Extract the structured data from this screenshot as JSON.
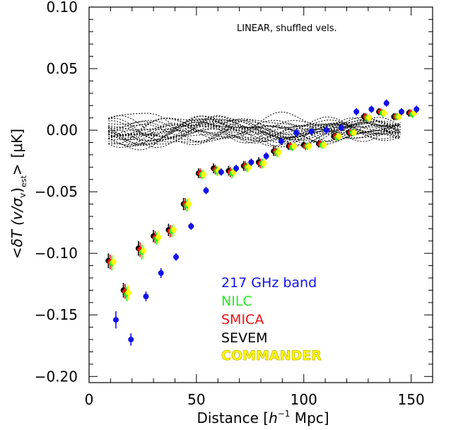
{
  "chart_data": {
    "type": "scatter",
    "annotation": "LINEAR, shuffled vels.",
    "xlabel_prefix": "Distance [",
    "xlabel_h": "h",
    "xlabel_h_exp": "−1",
    "xlabel_suffix": " Mpc]",
    "ylabel_lt": "<",
    "ylabel_dT": "δT",
    "ylabel_v": "(v/σ",
    "ylabel_vsub": "v",
    "ylabel_close": ")",
    "ylabel_est": "est",
    "ylabel_gt": ">",
    "ylabel_unit": "[μK]",
    "xlim": [
      0,
      160
    ],
    "ylim": [
      -0.205,
      0.1
    ],
    "x_ticks": [
      0,
      50,
      100,
      150
    ],
    "x_tick_labels": [
      "0",
      "50",
      "100",
      "150"
    ],
    "y_ticks": [
      0.1,
      0.05,
      0.0,
      -0.05,
      -0.1,
      -0.15,
      -0.2
    ],
    "y_tick_labels": [
      "0.10",
      "0.05",
      "0.00",
      "−0.05",
      "−0.10",
      "−0.15",
      "−0.20"
    ],
    "legend_placement": "bottom-right",
    "series": [
      {
        "name": "SEVEM",
        "color": "#000000",
        "x": [
          9.0,
          16.0,
          23.0,
          30.0,
          37.0,
          44.0,
          51.0,
          58.0,
          65.0,
          72.0,
          79.0,
          86.0,
          93.0,
          100.0,
          107.0,
          114.0,
          121.0,
          128.0,
          135.0,
          142.0,
          149.0
        ],
        "y": [
          -0.106,
          -0.13,
          -0.096,
          -0.086,
          -0.081,
          -0.06,
          -0.035,
          -0.031,
          -0.033,
          -0.029,
          -0.026,
          -0.017,
          -0.013,
          -0.012,
          -0.011,
          -0.005,
          -0.002,
          0.011,
          0.015,
          0.011,
          0.014
        ],
        "err": [
          0.006,
          0.006,
          0.006,
          0.005,
          0.005,
          0.005,
          0.004,
          0.004,
          0.004,
          0.004,
          0.004,
          0.004,
          0.003,
          0.003,
          0.003,
          0.003,
          0.003,
          0.003,
          0.003,
          0.003,
          0.003
        ]
      },
      {
        "name": "SMICA",
        "color": "#ee1111",
        "x": [
          9.8,
          16.8,
          23.8,
          30.8,
          37.8,
          44.8,
          51.8,
          58.8,
          65.8,
          72.8,
          79.8,
          86.8,
          93.8,
          100.8,
          107.8,
          114.8,
          121.8,
          128.8,
          135.8,
          142.8,
          149.8
        ],
        "y": [
          -0.107,
          -0.131,
          -0.097,
          -0.087,
          -0.082,
          -0.06,
          -0.035,
          -0.032,
          -0.034,
          -0.029,
          -0.027,
          -0.017,
          -0.013,
          -0.013,
          -0.011,
          -0.005,
          -0.002,
          0.011,
          0.015,
          0.011,
          0.014
        ],
        "err": [
          0.006,
          0.006,
          0.006,
          0.005,
          0.005,
          0.005,
          0.004,
          0.004,
          0.004,
          0.004,
          0.004,
          0.004,
          0.003,
          0.003,
          0.003,
          0.003,
          0.003,
          0.003,
          0.003,
          0.003,
          0.003
        ]
      },
      {
        "name": "NILC",
        "color": "#22ee22",
        "x": [
          10.6,
          17.6,
          24.6,
          31.6,
          38.6,
          45.6,
          52.6,
          59.6,
          66.6,
          73.6,
          80.6,
          87.6,
          94.6,
          101.6,
          108.6,
          115.6,
          122.6,
          129.6,
          136.6,
          143.6,
          150.6
        ],
        "y": [
          -0.108,
          -0.133,
          -0.099,
          -0.088,
          -0.082,
          -0.061,
          -0.036,
          -0.033,
          -0.035,
          -0.03,
          -0.027,
          -0.018,
          -0.014,
          -0.013,
          -0.012,
          -0.006,
          -0.002,
          0.01,
          0.014,
          0.011,
          0.013
        ],
        "err": [
          0.006,
          0.006,
          0.006,
          0.005,
          0.005,
          0.005,
          0.004,
          0.004,
          0.004,
          0.004,
          0.004,
          0.004,
          0.003,
          0.003,
          0.003,
          0.003,
          0.003,
          0.003,
          0.003,
          0.003,
          0.003
        ]
      },
      {
        "name": "COMMANDER",
        "color": "#ffff00",
        "x": [
          11.4,
          18.4,
          25.4,
          32.4,
          39.4,
          46.4,
          53.4,
          60.4,
          67.4,
          74.4,
          81.4,
          88.4,
          95.4,
          102.4,
          109.4,
          116.4,
          123.4,
          130.4,
          137.4,
          144.4,
          151.4
        ],
        "y": [
          -0.107,
          -0.132,
          -0.098,
          -0.087,
          -0.081,
          -0.06,
          -0.036,
          -0.033,
          -0.034,
          -0.03,
          -0.027,
          -0.018,
          -0.013,
          -0.013,
          -0.012,
          -0.005,
          -0.002,
          0.01,
          0.014,
          0.011,
          0.014
        ],
        "err": [
          0.006,
          0.006,
          0.006,
          0.005,
          0.005,
          0.005,
          0.004,
          0.004,
          0.004,
          0.004,
          0.004,
          0.004,
          0.003,
          0.003,
          0.003,
          0.003,
          0.003,
          0.003,
          0.003,
          0.003,
          0.003
        ]
      },
      {
        "name": "217 GHz band",
        "color": "#1111ee",
        "x": [
          12.5,
          19.5,
          26.5,
          33.5,
          40.5,
          47.5,
          54.5,
          61.5,
          68.5,
          75.5,
          82.5,
          89.5,
          96.5,
          103.5,
          110.5,
          117.5,
          124.5,
          131.5,
          138.5,
          145.5,
          152.5
        ],
        "y": [
          -0.154,
          -0.17,
          -0.135,
          -0.116,
          -0.103,
          -0.078,
          -0.049,
          -0.034,
          -0.031,
          -0.026,
          -0.021,
          -0.009,
          -0.002,
          -0.001,
          0.0,
          0.002,
          0.015,
          0.017,
          0.022,
          0.015,
          0.017
        ],
        "err": [
          0.007,
          0.005,
          0.004,
          0.004,
          0.003,
          0.003,
          0.003,
          0.003,
          0.003,
          0.003,
          0.003,
          0.003,
          0.003,
          0.003,
          0.003,
          0.003,
          0.003,
          0.003,
          0.003,
          0.003,
          0.003
        ]
      }
    ]
  },
  "legend": [
    {
      "label": "217 GHz band",
      "color": "#1111ee"
    },
    {
      "label": "NILC",
      "color": "#22ee22"
    },
    {
      "label": "SMICA",
      "color": "#ee1111"
    },
    {
      "label": "SEVEM",
      "color": "#000000"
    },
    {
      "label": "COMMANDER",
      "color": "#ffff00"
    }
  ]
}
